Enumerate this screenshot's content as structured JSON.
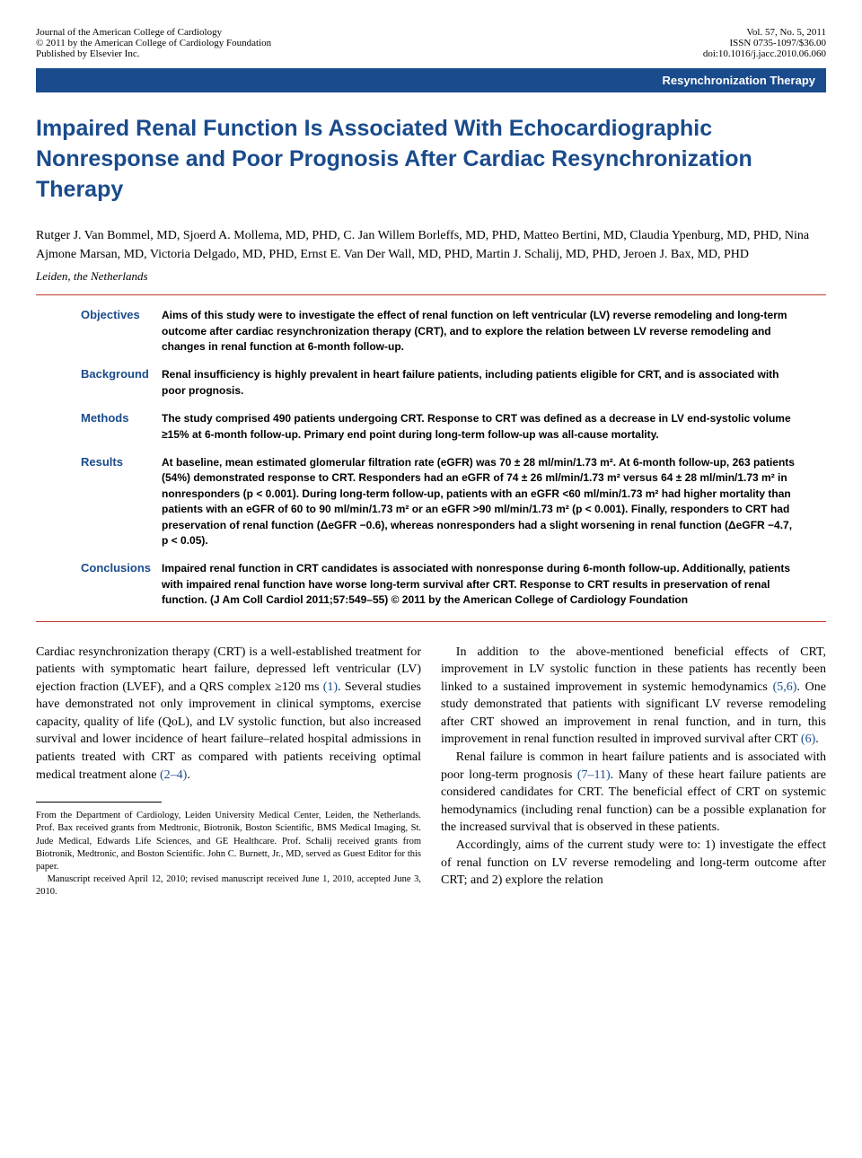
{
  "header": {
    "journal_line1": "Journal of the American College of Cardiology",
    "journal_line2": "© 2011 by the American College of Cardiology Foundation",
    "journal_line3": "Published by Elsevier Inc.",
    "vol_line": "Vol. 57, No. 5, 2011",
    "issn_line": "ISSN 0735-1097/$36.00",
    "doi_line": "doi:10.1016/j.jacc.2010.06.060"
  },
  "section_banner": "Resynchronization Therapy",
  "title": "Impaired Renal Function Is Associated With Echocardiographic Nonresponse and Poor Prognosis After Cardiac Resynchronization Therapy",
  "authors": "Rutger J. Van Bommel, MD, Sjoerd A. Mollema, MD, PHD, C. Jan Willem Borleffs, MD, PHD, Matteo Bertini, MD, Claudia Ypenburg, MD, PHD, Nina Ajmone Marsan, MD, Victoria Delgado, MD, PHD, Ernst E. Van Der Wall, MD, PHD, Martin J. Schalij, MD, PHD, Jeroen J. Bax, MD, PHD",
  "affiliation": "Leiden, the Netherlands",
  "abstract": {
    "objectives": {
      "label": "Objectives",
      "text": "Aims of this study were to investigate the effect of renal function on left ventricular (LV) reverse remodeling and long-term outcome after cardiac resynchronization therapy (CRT), and to explore the relation between LV reverse remodeling and changes in renal function at 6-month follow-up."
    },
    "background": {
      "label": "Background",
      "text": "Renal insufficiency is highly prevalent in heart failure patients, including patients eligible for CRT, and is associated with poor prognosis."
    },
    "methods": {
      "label": "Methods",
      "text": "The study comprised 490 patients undergoing CRT. Response to CRT was defined as a decrease in LV end-systolic volume ≥15% at 6-month follow-up. Primary end point during long-term follow-up was all-cause mortality."
    },
    "results": {
      "label": "Results",
      "text": "At baseline, mean estimated glomerular filtration rate (eGFR) was 70 ± 28 ml/min/1.73 m². At 6-month follow-up, 263 patients (54%) demonstrated response to CRT. Responders had an eGFR of 74 ± 26 ml/min/1.73 m² versus 64 ± 28 ml/min/1.73 m² in nonresponders (p < 0.001). During long-term follow-up, patients with an eGFR <60 ml/min/1.73 m² had higher mortality than patients with an eGFR of 60 to 90 ml/min/1.73 m² or an eGFR >90 ml/min/1.73 m² (p < 0.001). Finally, responders to CRT had preservation of renal function (ΔeGFR −0.6), whereas nonresponders had a slight worsening in renal function (ΔeGFR −4.7, p < 0.05)."
    },
    "conclusions": {
      "label": "Conclusions",
      "text": "Impaired renal function in CRT candidates is associated with nonresponse during 6-month follow-up. Additionally, patients with impaired renal function have worse long-term survival after CRT. Response to CRT results in preservation of renal function.   (J Am Coll Cardiol 2011;57:549–55) © 2011 by the American College of Cardiology Foundation"
    }
  },
  "body": {
    "col1": {
      "p1a": "Cardiac resynchronization therapy (CRT) is a well-established treatment for patients with symptomatic heart failure, depressed left ventricular (LV) ejection fraction (LVEF), and a QRS complex ≥120 ms ",
      "p1_ref1": "(1)",
      "p1b": ". Several studies have demonstrated not only improvement in clinical symptoms, exercise capacity, quality of life (QoL), and LV systolic function, but also increased survival and lower incidence of heart failure–related hospital admissions in patients treated with CRT as compared with patients receiving optimal medical treatment alone ",
      "p1_ref2": "(2–4)",
      "p1c": "."
    },
    "col2": {
      "p1a": "In addition to the above-mentioned beneficial effects of CRT, improvement in LV systolic function in these patients has recently been linked to a sustained improvement in systemic hemodynamics ",
      "p1_ref1": "(5,6)",
      "p1b": ". One study demonstrated that patients with significant LV reverse remodeling after CRT showed an improvement in renal function, and in turn, this improvement in renal function resulted in improved survival after CRT ",
      "p1_ref2": "(6)",
      "p1c": ".",
      "p2a": "Renal failure is common in heart failure patients and is associated with poor long-term prognosis ",
      "p2_ref1": "(7–11)",
      "p2b": ". Many of these heart failure patients are considered candidates for CRT. The beneficial effect of CRT on systemic hemodynamics (including renal function) can be a possible explanation for the increased survival that is observed in these patients.",
      "p3": "Accordingly, aims of the current study were to: 1) investigate the effect of renal function on LV reverse remodeling and long-term outcome after CRT; and 2) explore the relation"
    }
  },
  "footnote": {
    "p1": "From the Department of Cardiology, Leiden University Medical Center, Leiden, the Netherlands. Prof. Bax received grants from Medtronic, Biotronik, Boston Scientific, BMS Medical Imaging, St. Jude Medical, Edwards Life Sciences, and GE Healthcare. Prof. Schalij received grants from Biotronik, Medtronic, and Boston Scientific. John C. Burnett, Jr., MD, served as Guest Editor for this paper.",
    "p2": "Manuscript received April 12, 2010; revised manuscript received June 1, 2010, accepted June 3, 2010."
  },
  "colors": {
    "brand_blue": "#1a4b8c",
    "rule_red": "#c0392b",
    "text": "#000000",
    "background": "#ffffff"
  }
}
